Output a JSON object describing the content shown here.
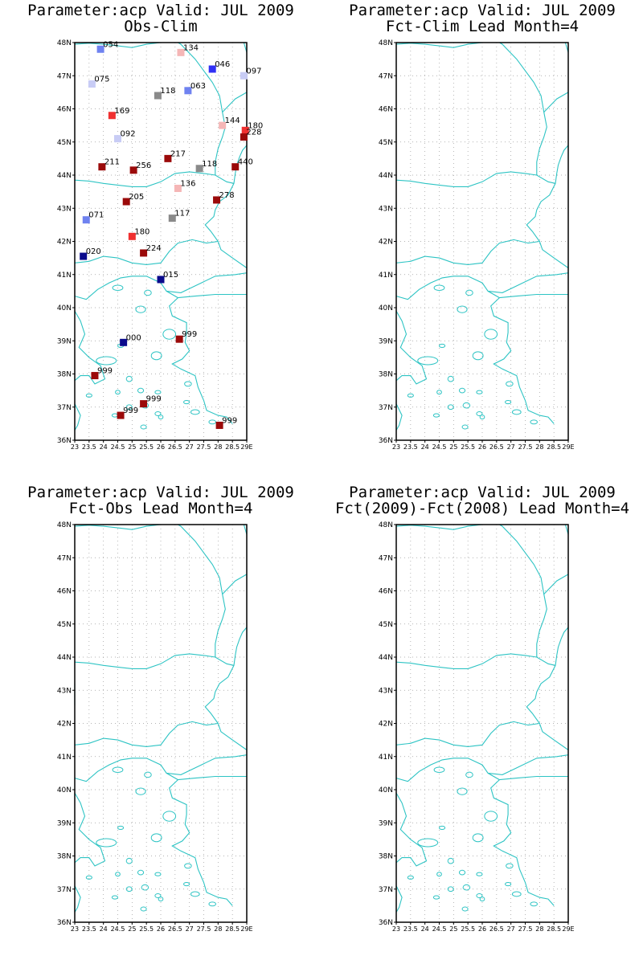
{
  "panels": [
    {
      "title1": "Parameter:acp Valid: JUL 2009",
      "title2": "Obs-Clim"
    },
    {
      "title1": "Parameter:acp Valid: JUL 2009",
      "title2": "Fct-Clim Lead Month=4"
    },
    {
      "title1": "Parameter:acp Valid: JUL 2009",
      "title2": "Fct-Obs Lead Month=4"
    },
    {
      "title1": "Parameter:acp Valid: JUL 2009",
      "title2": "Fct(2009)-Fct(2008) Lead Month=4"
    }
  ],
  "chart_data": {
    "type": "map",
    "x_range": [
      23,
      29
    ],
    "y_range": [
      36,
      48
    ],
    "x_tick_labels": [
      "23",
      "23.5",
      "24",
      "24.5",
      "25",
      "25.5",
      "26",
      "26.5",
      "27",
      "27.5",
      "28",
      "28.5",
      "29E"
    ],
    "y_tick_labels": [
      "36N",
      "37N",
      "38N",
      "39N",
      "40N",
      "41N",
      "42N",
      "43N",
      "44N",
      "45N",
      "46N",
      "47N",
      "48N"
    ],
    "grid": true,
    "colors": {
      "frame": "#000000",
      "coast": "#2ec4c4",
      "grid": "#9a9a9a"
    },
    "stations": [
      {
        "lon": 23.9,
        "lat": 47.8,
        "label": "054",
        "color": "#6f82f0"
      },
      {
        "lon": 26.7,
        "lat": 47.7,
        "label": "134",
        "color": "#f5b6b6"
      },
      {
        "lon": 27.8,
        "lat": 47.2,
        "label": "046",
        "color": "#3030f5"
      },
      {
        "lon": 28.9,
        "lat": 47.0,
        "label": "097",
        "color": "#c8ccf5"
      },
      {
        "lon": 23.6,
        "lat": 46.75,
        "label": "075",
        "color": "#c8ccf5"
      },
      {
        "lon": 25.9,
        "lat": 46.4,
        "label": "118",
        "color": "#8a8a8a"
      },
      {
        "lon": 26.95,
        "lat": 46.55,
        "label": "063",
        "color": "#6f82f0"
      },
      {
        "lon": 24.3,
        "lat": 45.8,
        "label": "169",
        "color": "#f03030"
      },
      {
        "lon": 28.15,
        "lat": 45.5,
        "label": "144",
        "color": "#f5b6b6"
      },
      {
        "lon": 28.95,
        "lat": 45.35,
        "label": "180",
        "color": "#f03030"
      },
      {
        "lon": 28.9,
        "lat": 45.15,
        "label": "228",
        "color": "#9b0a0a"
      },
      {
        "lon": 24.5,
        "lat": 45.1,
        "label": "092",
        "color": "#c8ccf5"
      },
      {
        "lon": 26.25,
        "lat": 44.5,
        "label": "217",
        "color": "#9b0a0a"
      },
      {
        "lon": 23.95,
        "lat": 44.25,
        "label": "211",
        "color": "#9b0a0a"
      },
      {
        "lon": 25.05,
        "lat": 44.15,
        "label": "256",
        "color": "#9b0a0a"
      },
      {
        "lon": 27.35,
        "lat": 44.2,
        "label": "118",
        "color": "#8a8a8a"
      },
      {
        "lon": 28.6,
        "lat": 44.25,
        "label": "440",
        "color": "#9b0a0a"
      },
      {
        "lon": 26.6,
        "lat": 43.6,
        "label": "136",
        "color": "#f5b6b6"
      },
      {
        "lon": 24.8,
        "lat": 43.2,
        "label": "205",
        "color": "#9b0a0a"
      },
      {
        "lon": 27.95,
        "lat": 43.25,
        "label": "278",
        "color": "#9b0a0a"
      },
      {
        "lon": 23.4,
        "lat": 42.65,
        "label": "071",
        "color": "#6f82f0"
      },
      {
        "lon": 26.4,
        "lat": 42.7,
        "label": "117",
        "color": "#8a8a8a"
      },
      {
        "lon": 25.0,
        "lat": 42.15,
        "label": "180",
        "color": "#f03030"
      },
      {
        "lon": 25.4,
        "lat": 41.65,
        "label": "224",
        "color": "#9b0a0a"
      },
      {
        "lon": 23.3,
        "lat": 41.55,
        "label": "020",
        "color": "#0a0a8c"
      },
      {
        "lon": 26.0,
        "lat": 40.85,
        "label": "015",
        "color": "#0a0a8c"
      },
      {
        "lon": 24.7,
        "lat": 38.95,
        "label": "000",
        "color": "#0a0a8c"
      },
      {
        "lon": 26.65,
        "lat": 39.05,
        "label": "999",
        "color": "#9b0a0a"
      },
      {
        "lon": 23.7,
        "lat": 37.95,
        "label": "999",
        "color": "#9b0a0a"
      },
      {
        "lon": 25.4,
        "lat": 37.1,
        "label": "999",
        "color": "#9b0a0a"
      },
      {
        "lon": 24.6,
        "lat": 36.75,
        "label": "999",
        "color": "#9b0a0a"
      },
      {
        "lon": 28.05,
        "lat": 36.45,
        "label": "999",
        "color": "#9b0a0a"
      }
    ]
  }
}
